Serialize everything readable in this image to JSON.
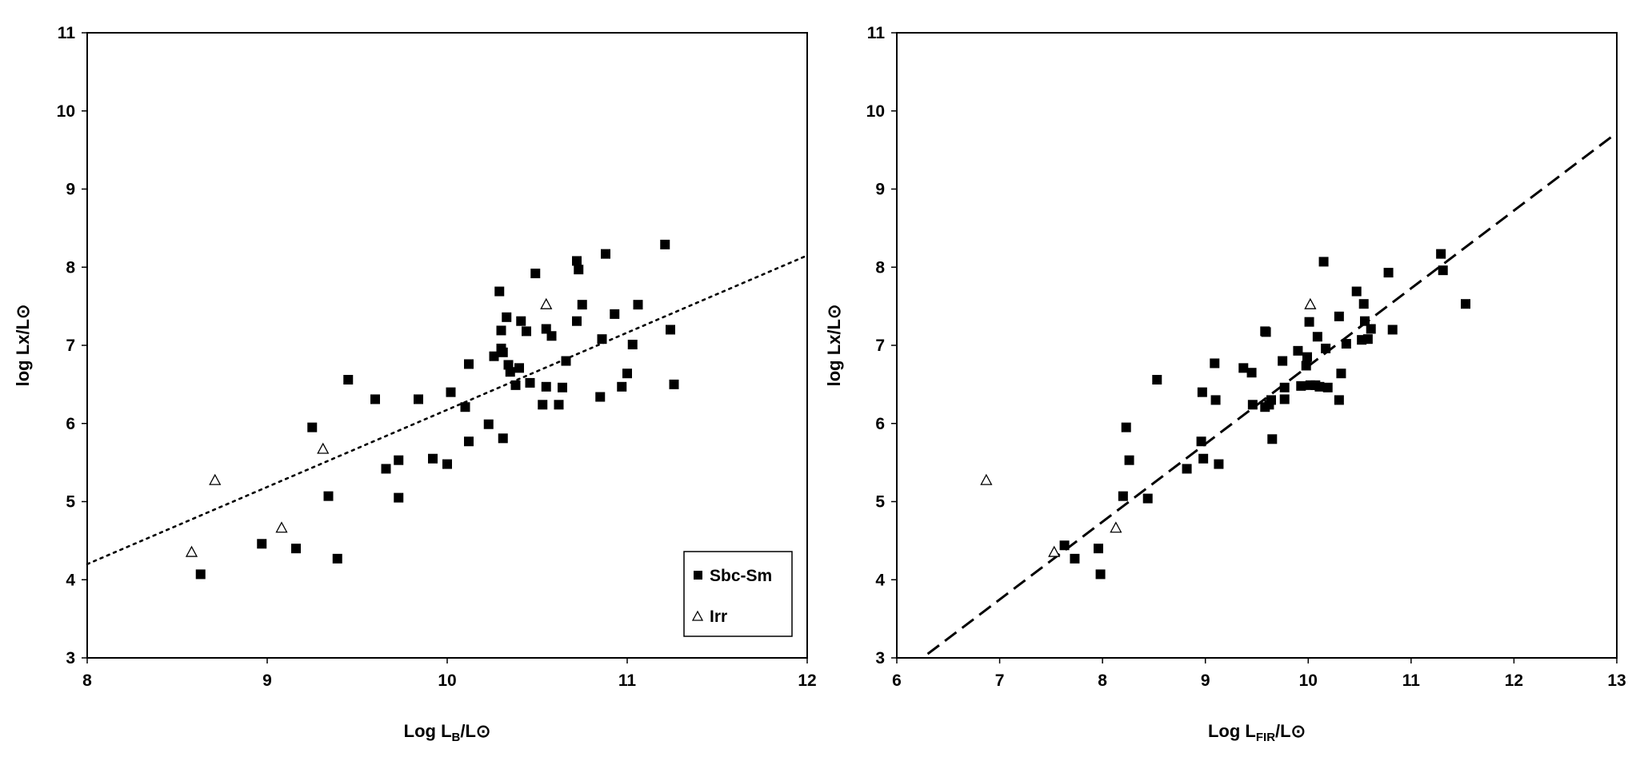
{
  "chart_data": [
    {
      "type": "scatter",
      "xlabel": {
        "main": "Log L",
        "sub": "B",
        "tail": "/L⊙"
      },
      "ylabel": "log Lx/L⊙",
      "xlim": [
        8,
        12
      ],
      "ylim": [
        3,
        11
      ],
      "xticks": [
        "8",
        "9",
        "10",
        "11",
        "12"
      ],
      "yticks": [
        "3",
        "4",
        "5",
        "6",
        "7",
        "8",
        "9",
        "10",
        "11"
      ],
      "legend": {
        "placement": "bottom-right",
        "entries": [
          "Sbc-Sm",
          "Irr"
        ]
      },
      "series": [
        {
          "name": "Sbc-Sm",
          "marker": "filled-square",
          "color": "#000000",
          "points": [
            [
              8.63,
              4.07
            ],
            [
              8.97,
              4.46
            ],
            [
              9.16,
              4.4
            ],
            [
              9.25,
              5.95
            ],
            [
              9.34,
              5.07
            ],
            [
              9.39,
              4.27
            ],
            [
              9.45,
              6.56
            ],
            [
              9.6,
              6.31
            ],
            [
              9.66,
              5.42
            ],
            [
              9.73,
              5.53
            ],
            [
              9.73,
              5.05
            ],
            [
              9.84,
              6.31
            ],
            [
              9.92,
              5.55
            ],
            [
              10.0,
              5.48
            ],
            [
              10.02,
              6.4
            ],
            [
              10.1,
              6.21
            ],
            [
              10.12,
              6.76
            ],
            [
              10.12,
              5.77
            ],
            [
              10.23,
              5.99
            ],
            [
              10.26,
              6.86
            ],
            [
              10.29,
              7.69
            ],
            [
              10.3,
              6.96
            ],
            [
              10.3,
              7.19
            ],
            [
              10.31,
              5.81
            ],
            [
              10.31,
              6.91
            ],
            [
              10.33,
              7.36
            ],
            [
              10.34,
              6.75
            ],
            [
              10.35,
              6.66
            ],
            [
              10.38,
              6.49
            ],
            [
              10.4,
              6.71
            ],
            [
              10.41,
              7.31
            ],
            [
              10.44,
              7.18
            ],
            [
              10.46,
              6.52
            ],
            [
              10.49,
              7.92
            ],
            [
              10.53,
              6.24
            ],
            [
              10.55,
              7.21
            ],
            [
              10.55,
              6.47
            ],
            [
              10.58,
              7.12
            ],
            [
              10.62,
              6.24
            ],
            [
              10.64,
              6.46
            ],
            [
              10.66,
              6.8
            ],
            [
              10.72,
              7.31
            ],
            [
              10.72,
              8.08
            ],
            [
              10.73,
              7.97
            ],
            [
              10.75,
              7.52
            ],
            [
              10.85,
              6.34
            ],
            [
              10.86,
              7.08
            ],
            [
              10.88,
              8.17
            ],
            [
              10.93,
              7.4
            ],
            [
              10.97,
              6.47
            ],
            [
              11.0,
              6.64
            ],
            [
              11.03,
              7.01
            ],
            [
              11.06,
              7.52
            ],
            [
              11.21,
              8.29
            ],
            [
              11.24,
              7.2
            ],
            [
              11.26,
              6.5
            ]
          ]
        },
        {
          "name": "Irr",
          "marker": "open-triangle",
          "color": "#000000",
          "points": [
            [
              8.58,
              4.35
            ],
            [
              8.71,
              5.27
            ],
            [
              9.08,
              4.66
            ],
            [
              9.31,
              5.67
            ],
            [
              10.55,
              7.52
            ]
          ]
        }
      ],
      "fit": {
        "style": "dotted",
        "x": [
          8,
          12
        ],
        "y": [
          4.2,
          8.15
        ]
      }
    },
    {
      "type": "scatter",
      "xlabel": {
        "main": "Log L",
        "sub": "FIR",
        "tail": "/L⊙"
      },
      "ylabel": "log Lx/L⊙",
      "xlim": [
        6,
        13
      ],
      "ylim": [
        3,
        11
      ],
      "xticks": [
        "6",
        "7",
        "8",
        "9",
        "10",
        "11",
        "12",
        "13"
      ],
      "yticks": [
        "3",
        "4",
        "5",
        "6",
        "7",
        "8",
        "9",
        "10",
        "11"
      ],
      "series": [
        {
          "name": "Sbc-Sm",
          "marker": "filled-square",
          "color": "#000000",
          "points": [
            [
              7.63,
              4.44
            ],
            [
              7.73,
              4.27
            ],
            [
              7.96,
              4.4
            ],
            [
              7.98,
              4.07
            ],
            [
              8.2,
              5.07
            ],
            [
              8.23,
              5.95
            ],
            [
              8.26,
              5.53
            ],
            [
              8.44,
              5.04
            ],
            [
              8.53,
              6.56
            ],
            [
              8.82,
              5.42
            ],
            [
              8.96,
              5.77
            ],
            [
              8.97,
              6.4
            ],
            [
              8.98,
              5.55
            ],
            [
              9.09,
              6.77
            ],
            [
              9.1,
              6.3
            ],
            [
              9.13,
              5.48
            ],
            [
              9.37,
              6.71
            ],
            [
              9.45,
              6.65
            ],
            [
              9.46,
              6.24
            ],
            [
              9.58,
              7.18
            ],
            [
              9.58,
              6.21
            ],
            [
              9.59,
              7.17
            ],
            [
              9.62,
              6.24
            ],
            [
              9.64,
              6.3
            ],
            [
              9.65,
              5.8
            ],
            [
              9.75,
              6.8
            ],
            [
              9.77,
              6.46
            ],
            [
              9.77,
              6.31
            ],
            [
              9.9,
              6.93
            ],
            [
              9.93,
              6.48
            ],
            [
              9.98,
              6.74
            ],
            [
              9.99,
              6.85
            ],
            [
              10.01,
              7.3
            ],
            [
              10.02,
              6.49
            ],
            [
              10.07,
              6.49
            ],
            [
              10.09,
              7.11
            ],
            [
              10.11,
              6.47
            ],
            [
              10.15,
              8.07
            ],
            [
              10.17,
              6.96
            ],
            [
              10.19,
              6.46
            ],
            [
              10.3,
              7.37
            ],
            [
              10.3,
              6.3
            ],
            [
              10.32,
              6.64
            ],
            [
              10.37,
              7.02
            ],
            [
              10.47,
              7.69
            ],
            [
              10.52,
              7.07
            ],
            [
              10.54,
              7.53
            ],
            [
              10.55,
              7.31
            ],
            [
              10.58,
              7.08
            ],
            [
              10.61,
              7.21
            ],
            [
              10.78,
              7.93
            ],
            [
              10.82,
              7.2
            ],
            [
              11.29,
              8.17
            ],
            [
              11.31,
              7.96
            ],
            [
              11.53,
              7.53
            ]
          ]
        },
        {
          "name": "Irr",
          "marker": "open-triangle",
          "color": "#000000",
          "points": [
            [
              6.87,
              5.27
            ],
            [
              7.53,
              4.35
            ],
            [
              8.13,
              4.66
            ],
            [
              10.02,
              7.52
            ]
          ]
        }
      ],
      "fit": {
        "style": "dashed",
        "x": [
          6.3,
          13
        ],
        "y": [
          3.05,
          9.72
        ]
      }
    }
  ]
}
